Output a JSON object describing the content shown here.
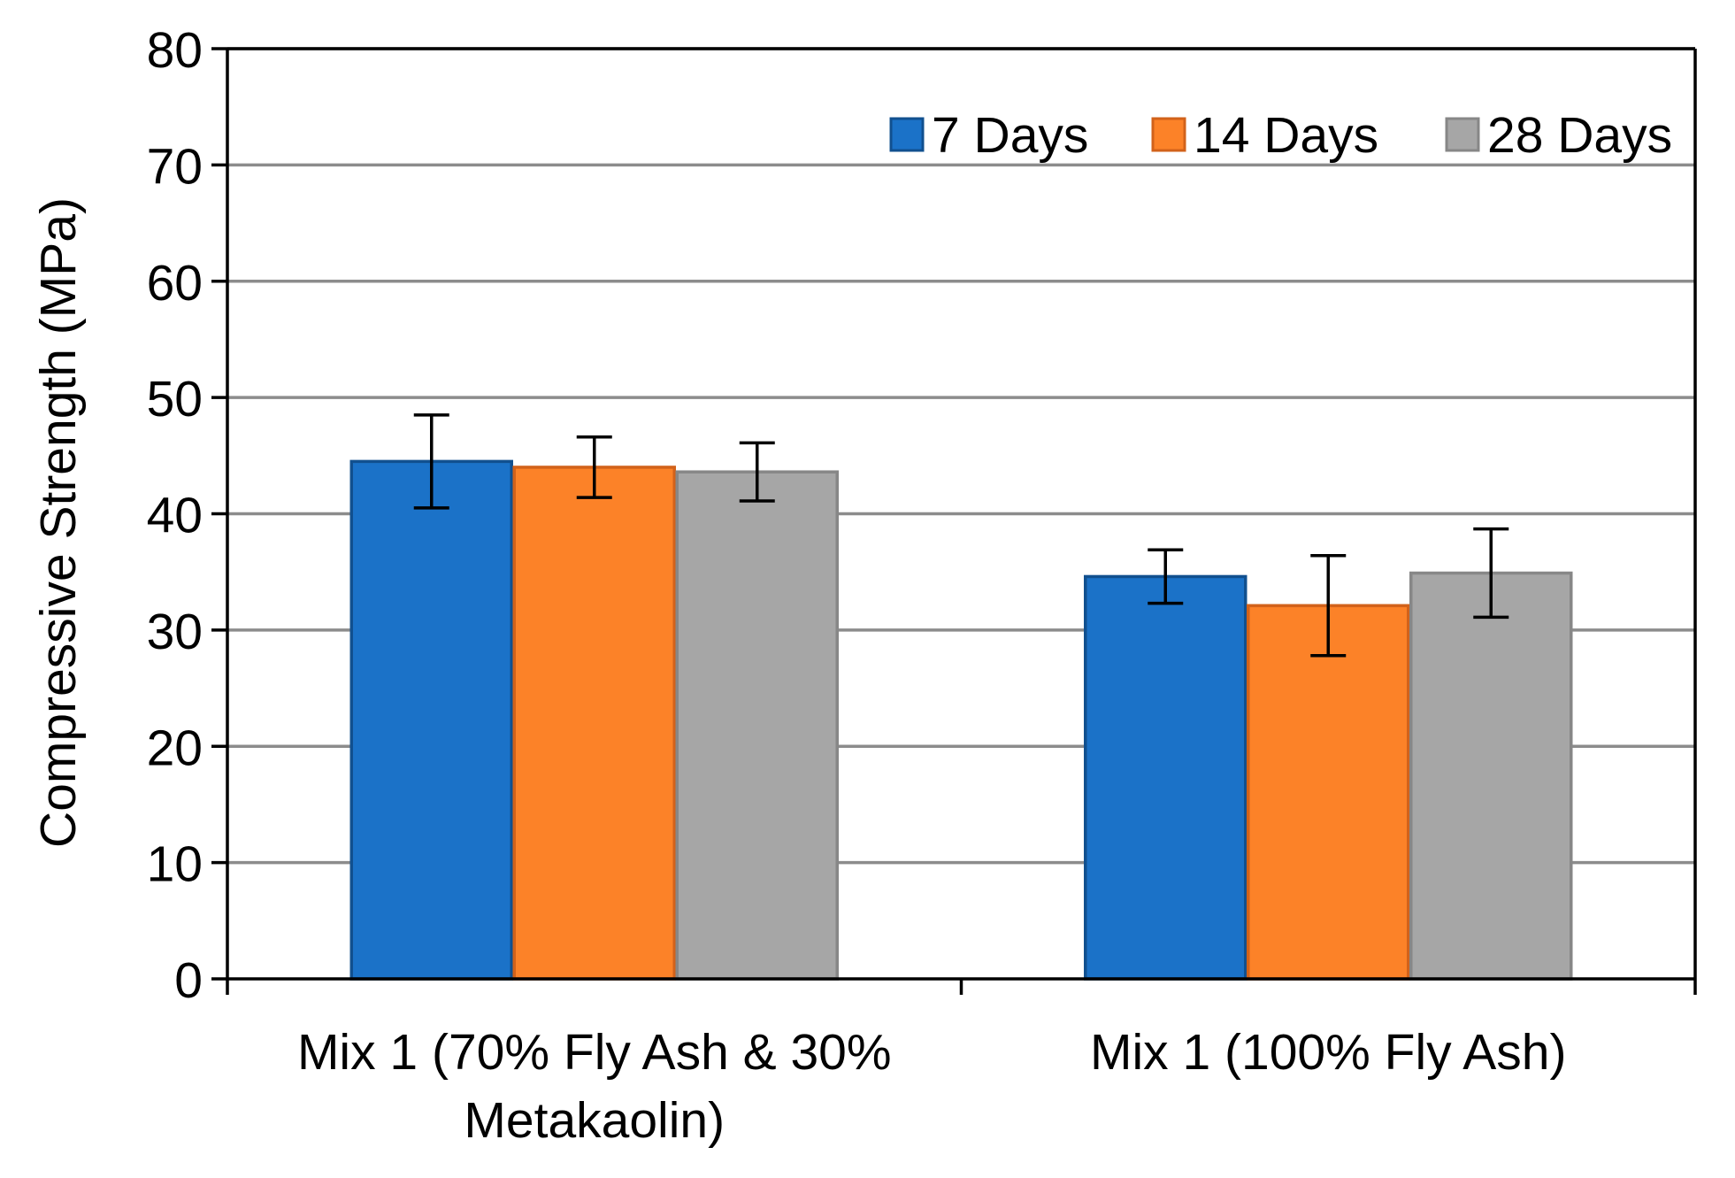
{
  "chart_data": {
    "type": "bar",
    "title": "",
    "xlabel": "",
    "ylabel": "Compressive Strength (MPa)",
    "ylim": [
      0,
      80
    ],
    "yticks": [
      0,
      10,
      20,
      30,
      40,
      50,
      60,
      70,
      80
    ],
    "grid": true,
    "legend_position": "top-right",
    "categories": [
      [
        "Mix 1 (70% Fly Ash & 30%",
        "Metakaolin)"
      ],
      [
        "Mix 1 (100% Fly Ash)"
      ]
    ],
    "series": [
      {
        "name": "7 Days",
        "color": "#1B72C8",
        "edge": "#11508F",
        "values": [
          44.5,
          34.6
        ],
        "errors": [
          4.0,
          2.3
        ]
      },
      {
        "name": "14 Days",
        "color": "#FC8228",
        "edge": "#D2621A",
        "values": [
          44.0,
          32.1
        ],
        "errors": [
          2.6,
          4.3
        ]
      },
      {
        "name": "28 Days",
        "color": "#A6A6A6",
        "edge": "#878787",
        "values": [
          43.6,
          34.9
        ],
        "errors": [
          2.5,
          3.8
        ]
      }
    ]
  }
}
